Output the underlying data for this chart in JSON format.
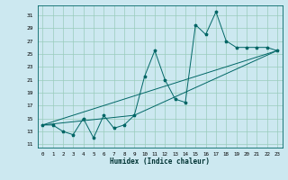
{
  "title": "",
  "xlabel": "Humidex (Indice chaleur)",
  "bg_color": "#cce8f0",
  "grid_color": "#99ccbb",
  "line_color": "#006666",
  "marker": "*",
  "xlim": [
    -0.5,
    23.5
  ],
  "ylim": [
    10.5,
    32.5
  ],
  "xticks": [
    0,
    1,
    2,
    3,
    4,
    5,
    6,
    7,
    8,
    9,
    10,
    11,
    12,
    13,
    14,
    15,
    16,
    17,
    18,
    19,
    20,
    21,
    22,
    23
  ],
  "yticks": [
    11,
    13,
    15,
    17,
    19,
    21,
    23,
    25,
    27,
    29,
    31
  ],
  "series": [
    [
      0,
      14
    ],
    [
      1,
      14
    ],
    [
      2,
      13
    ],
    [
      3,
      12.5
    ],
    [
      4,
      15
    ],
    [
      5,
      12
    ],
    [
      6,
      15.5
    ],
    [
      7,
      13.5
    ],
    [
      8,
      14
    ],
    [
      9,
      15.5
    ],
    [
      10,
      21.5
    ],
    [
      11,
      25.5
    ],
    [
      12,
      21
    ],
    [
      13,
      18
    ],
    [
      14,
      17.5
    ],
    [
      15,
      29.5
    ],
    [
      16,
      28
    ],
    [
      17,
      31.5
    ],
    [
      18,
      27
    ],
    [
      19,
      26
    ],
    [
      20,
      26
    ],
    [
      21,
      26
    ],
    [
      22,
      26
    ],
    [
      23,
      25.5
    ]
  ],
  "line2": [
    [
      0,
      14
    ],
    [
      23,
      25.5
    ]
  ],
  "line3": [
    [
      0,
      14
    ],
    [
      9,
      15.5
    ],
    [
      23,
      25.5
    ]
  ]
}
